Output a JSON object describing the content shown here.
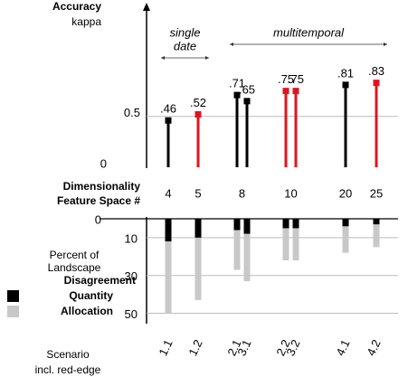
{
  "chart_data": [
    {
      "type": "lollipop",
      "y_label": "Accuracy",
      "y_sublabel": "kappa",
      "x_label": [
        "Dimensionality",
        "Feature Space #"
      ],
      "categories": [
        "4",
        "5",
        "8",
        null,
        "10",
        null,
        "20",
        "25"
      ],
      "values": [
        0.46,
        0.52,
        0.71,
        0.65,
        0.75,
        0.75,
        0.81,
        0.83
      ],
      "value_labels": [
        ".46",
        ".52",
        ".71",
        ".65",
        ".75",
        ".75",
        ".81",
        ".83"
      ],
      "colors": [
        "#000000",
        "#e0141e",
        "#000000",
        "#000000",
        "#e0141e",
        "#e0141e",
        "#000000",
        "#e0141e"
      ],
      "ylim": [
        0,
        1.6
      ],
      "yticks": [
        0,
        0.5
      ],
      "grid": true,
      "annotations": [
        {
          "lines": [
            "single",
            "date"
          ],
          "from": "1.1",
          "to": "1.2"
        },
        {
          "lines": [
            "multitemporal"
          ],
          "from": "2.1",
          "to": "4.2"
        }
      ]
    },
    {
      "type": "stacked_bar_down",
      "y_label": [
        "Percent of",
        "Landscape"
      ],
      "legend_title": "Disagreement",
      "category_label": "Scenario",
      "highlight_label": "incl. red-edge",
      "highlight_color": "#e0141e",
      "categories": [
        "1.1",
        "1.2",
        "2.1",
        "3.1",
        "2.2",
        "3.2",
        "4.1",
        "4.2"
      ],
      "highlight": [
        false,
        true,
        false,
        false,
        true,
        true,
        false,
        true
      ],
      "series": [
        {
          "name": "Quantity",
          "color": "#000000",
          "values": [
            12,
            10,
            6,
            8,
            5,
            5,
            4,
            3
          ]
        },
        {
          "name": "Allocation",
          "color": "#c8c8c8",
          "values": [
            38,
            33,
            21,
            25,
            17,
            17,
            14,
            12
          ]
        }
      ],
      "ylim": [
        0,
        55
      ],
      "yticks": [
        0,
        10,
        30,
        50
      ],
      "grid": true
    }
  ]
}
